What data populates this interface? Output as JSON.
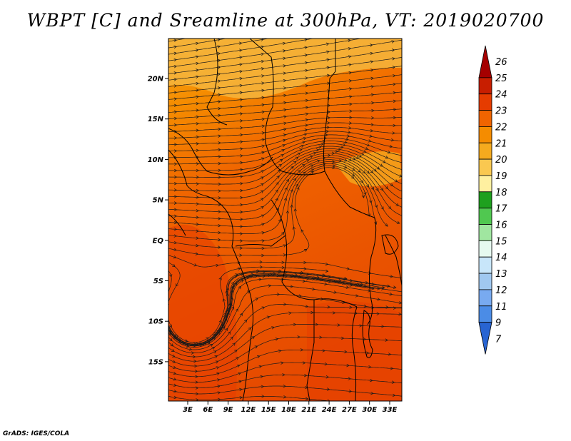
{
  "title": "WBPT [C] and Sreamline at 300hPa, VT: 2019020700",
  "credit": "GrADS: IGES/COLA",
  "lat_ticks": [
    "20N",
    "15N",
    "10N",
    "5N",
    "EQ",
    "5S",
    "10S",
    "15S"
  ],
  "lon_ticks": [
    "3E",
    "6E",
    "9E",
    "12E",
    "15E",
    "18E",
    "21E",
    "24E",
    "27E",
    "30E",
    "33E"
  ],
  "colorbar": {
    "labels": [
      "26",
      "25",
      "24",
      "23",
      "22",
      "21",
      "20",
      "19",
      "18",
      "17",
      "16",
      "15",
      "14",
      "13",
      "12",
      "11",
      "9",
      "7"
    ],
    "colors": [
      "#a50000",
      "#c81e00",
      "#e63c00",
      "#f06400",
      "#f58c00",
      "#f5aa1e",
      "#fac850",
      "#fff0a0",
      "#1ea01e",
      "#50c850",
      "#a0e6a0",
      "#e6faf0",
      "#c8e6fa",
      "#a0c8f0",
      "#78aaf0",
      "#4b8ce6",
      "#2864d2"
    ]
  }
}
